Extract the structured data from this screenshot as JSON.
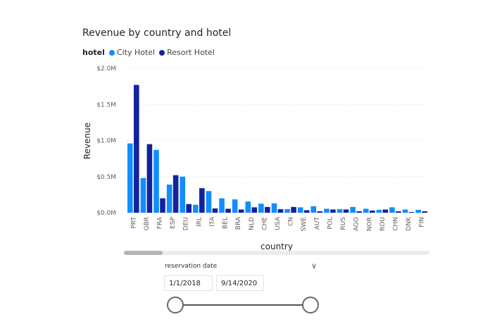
{
  "chart_data": {
    "type": "bar",
    "title": "Revenue by country and hotel",
    "xlabel": "country",
    "ylabel": "Revenue",
    "ylim": [
      0,
      2000000
    ],
    "yticks": [
      0,
      500000,
      1000000,
      1500000,
      2000000
    ],
    "ytick_labels": [
      "$0.0M",
      "$0.5M",
      "$1.0M",
      "$1.5M",
      "$2.0M"
    ],
    "grid": true,
    "legend_title": "hotel",
    "legend_position": "top-left",
    "categories": [
      "PRT",
      "GBR",
      "FRA",
      "ESP",
      "DEU",
      "IRL",
      "ITA",
      "BEL",
      "BRA",
      "NLD",
      "CHE",
      "USA",
      "CN",
      "SWE",
      "AUT",
      "POL",
      "RUS",
      "AGO",
      "NOR",
      "ROU",
      "CHN",
      "DNK",
      "FIN"
    ],
    "series": [
      {
        "name": "City Hotel",
        "color": "#118DFF",
        "values": [
          960000,
          480000,
          870000,
          390000,
          500000,
          110000,
          300000,
          200000,
          185000,
          155000,
          125000,
          130000,
          50000,
          75000,
          90000,
          55000,
          50000,
          80000,
          55000,
          40000,
          75000,
          45000,
          40000
        ]
      },
      {
        "name": "Resort Hotel",
        "color": "#12239E",
        "values": [
          1770000,
          950000,
          200000,
          520000,
          120000,
          340000,
          60000,
          55000,
          45000,
          75000,
          80000,
          50000,
          80000,
          35000,
          20000,
          45000,
          45000,
          20000,
          30000,
          45000,
          20000,
          10000,
          20000
        ]
      }
    ]
  },
  "slicer": {
    "title": "reservation date",
    "start_date": "1/1/2018",
    "end_date": "9/14/2020"
  },
  "icons": {
    "slicer_toggle": "chevron-down-icon"
  }
}
